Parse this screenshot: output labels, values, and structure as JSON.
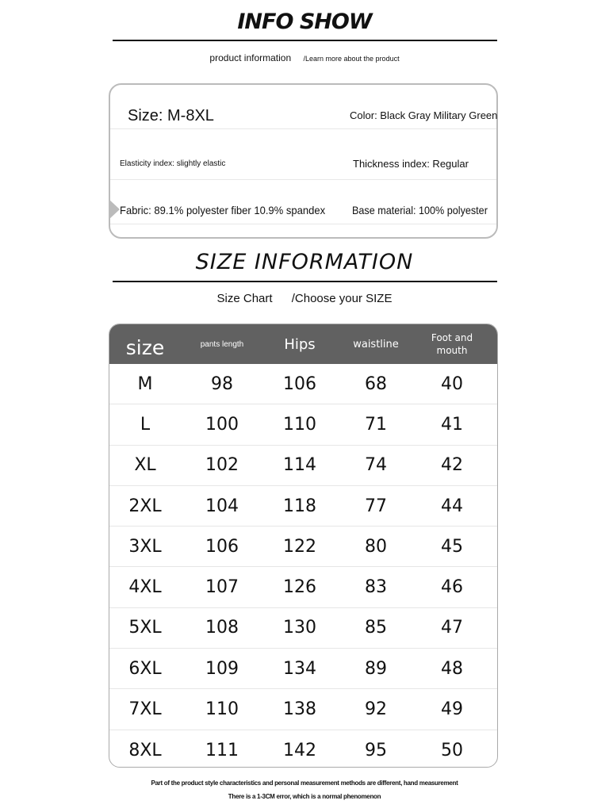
{
  "info": {
    "title": "INFO SHOW",
    "subtitle": "product information",
    "subtitle_note": "/Learn more about the product",
    "size": "Size: M-8XL",
    "color": "Color: Black Gray Military Green",
    "elasticity": "Elasticity index: slightly elastic",
    "thickness": "Thickness index: Regular",
    "fabric": "Fabric: 89.1% polyester fiber 10.9% spandex",
    "base": "Base material: 100% polyester"
  },
  "size_info": {
    "title": "SIZE  INFORMATION",
    "subtitle": "Size Chart",
    "subtitle_note": "/Choose your SIZE",
    "headers": [
      "size",
      "pants length",
      "Hips",
      "waistline",
      "Foot and mouth"
    ],
    "rows": [
      [
        "M",
        "98",
        "106",
        "68",
        "40"
      ],
      [
        "L",
        "100",
        "110",
        "71",
        "41"
      ],
      [
        "XL",
        "102",
        "114",
        "74",
        "42"
      ],
      [
        "2XL",
        "104",
        "118",
        "77",
        "44"
      ],
      [
        "3XL",
        "106",
        "122",
        "80",
        "45"
      ],
      [
        "4XL",
        "107",
        "126",
        "83",
        "46"
      ],
      [
        "5XL",
        "108",
        "130",
        "85",
        "47"
      ],
      [
        "6XL",
        "109",
        "134",
        "89",
        "48"
      ],
      [
        "7XL",
        "110",
        "138",
        "92",
        "49"
      ],
      [
        "8XL",
        "111",
        "142",
        "95",
        "50"
      ]
    ]
  },
  "footer": {
    "line1": "Part of the product style characteristics and personal measurement methods are different, hand measurement",
    "line2": "There is a 1-3CM error, which is a normal phenomenon"
  },
  "colors": {
    "header_bg": "#616161",
    "border": "#bbbbbb"
  }
}
